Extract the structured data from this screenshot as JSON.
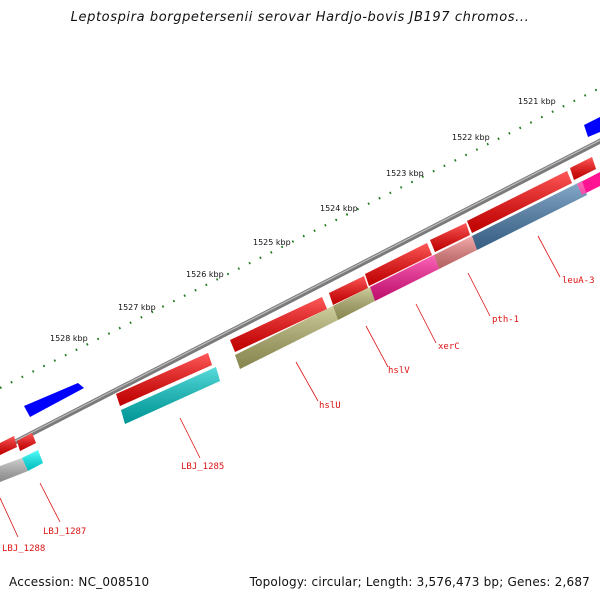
{
  "title": "Leptospira borgpetersenii serovar Hardjo-bovis JB197 chromos...",
  "footer": {
    "accession": "Accession: NC_008510",
    "summary": "Topology: circular; Length: 3,576,473 bp; Genes: 2,687"
  },
  "colors": {
    "backbone": "#7a7a7a",
    "tick": "#1e7a1e",
    "label": "#dd1111"
  },
  "ticks": [
    {
      "label": "1521 kbp"
    },
    {
      "label": "1522 kbp"
    },
    {
      "label": "1523 kbp"
    },
    {
      "label": "1524 kbp"
    },
    {
      "label": "1525 kbp"
    },
    {
      "label": "1526 kbp"
    },
    {
      "label": "1527 kbp"
    },
    {
      "label": "1528 kbp"
    }
  ],
  "genes": [
    {
      "label": "leuA-3",
      "color": "#4a7fb0"
    },
    {
      "label": "pth-1",
      "color": "#f08080"
    },
    {
      "label": "xerC",
      "color": "#ff1493"
    },
    {
      "label": "hslV",
      "color": "#b5b36a"
    },
    {
      "label": "hslU",
      "color": "#b5b36a"
    },
    {
      "label": "LBJ_1285",
      "color": "#00c8c8"
    },
    {
      "label": "LBJ_1287",
      "color": "#00ffff"
    },
    {
      "label": "LBJ_1288",
      "color": "#b8b8b8"
    }
  ],
  "other_features": {
    "top_strand_color": "#ff0000",
    "reverse_color": "#0000ff"
  }
}
